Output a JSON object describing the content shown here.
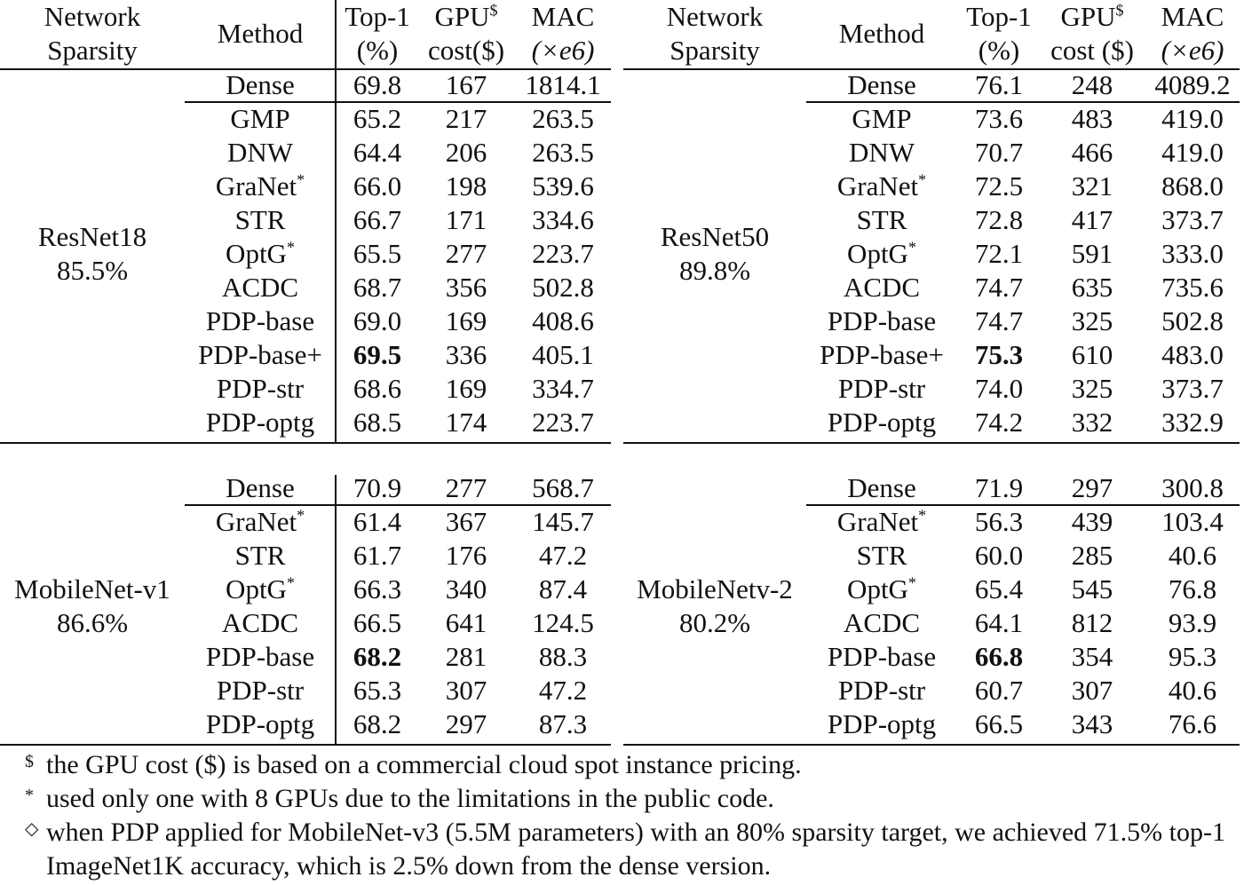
{
  "headers": {
    "network_sparsity": [
      "Network",
      "Sparsity"
    ],
    "method": "Method",
    "top1": [
      "Top-1",
      "(%)"
    ],
    "gpu_left": [
      "GPU",
      "cost($)"
    ],
    "gpu_right": [
      "GPU",
      "cost ($)"
    ],
    "gpu_sup": "$",
    "mac": [
      "MAC",
      "(×e6)"
    ]
  },
  "panels": [
    {
      "network": "ResNet18",
      "sparsity": "85.5%",
      "rows": [
        {
          "method": "Dense",
          "sup": "",
          "top1": "69.8",
          "gpu": "167",
          "mac": "1814.1",
          "bold": false
        },
        {
          "method": "GMP",
          "sup": "",
          "top1": "65.2",
          "gpu": "217",
          "mac": "263.5",
          "bold": false
        },
        {
          "method": "DNW",
          "sup": "",
          "top1": "64.4",
          "gpu": "206",
          "mac": "263.5",
          "bold": false
        },
        {
          "method": "GraNet",
          "sup": "*",
          "top1": "66.0",
          "gpu": "198",
          "mac": "539.6",
          "bold": false
        },
        {
          "method": "STR",
          "sup": "",
          "top1": "66.7",
          "gpu": "171",
          "mac": "334.6",
          "bold": false
        },
        {
          "method": "OptG",
          "sup": "*",
          "top1": "65.5",
          "gpu": "277",
          "mac": "223.7",
          "bold": false
        },
        {
          "method": "ACDC",
          "sup": "",
          "top1": "68.7",
          "gpu": "356",
          "mac": "502.8",
          "bold": false
        },
        {
          "method": "PDP-base",
          "sup": "",
          "top1": "69.0",
          "gpu": "169",
          "mac": "408.6",
          "bold": false
        },
        {
          "method": "PDP-base+",
          "sup": "",
          "top1": "69.5",
          "gpu": "336",
          "mac": "405.1",
          "bold": true
        },
        {
          "method": "PDP-str",
          "sup": "",
          "top1": "68.6",
          "gpu": "169",
          "mac": "334.7",
          "bold": false
        },
        {
          "method": "PDP-optg",
          "sup": "",
          "top1": "68.5",
          "gpu": "174",
          "mac": "223.7",
          "bold": false
        }
      ]
    },
    {
      "network": "ResNet50",
      "sparsity": "89.8%",
      "rows": [
        {
          "method": "Dense",
          "sup": "",
          "top1": "76.1",
          "gpu": "248",
          "mac": "4089.2",
          "bold": false
        },
        {
          "method": "GMP",
          "sup": "",
          "top1": "73.6",
          "gpu": "483",
          "mac": "419.0",
          "bold": false
        },
        {
          "method": "DNW",
          "sup": "",
          "top1": "70.7",
          "gpu": "466",
          "mac": "419.0",
          "bold": false
        },
        {
          "method": "GraNet",
          "sup": "*",
          "top1": "72.5",
          "gpu": "321",
          "mac": "868.0",
          "bold": false
        },
        {
          "method": "STR",
          "sup": "",
          "top1": "72.8",
          "gpu": "417",
          "mac": "373.7",
          "bold": false
        },
        {
          "method": "OptG",
          "sup": "*",
          "top1": "72.1",
          "gpu": "591",
          "mac": "333.0",
          "bold": false
        },
        {
          "method": "ACDC",
          "sup": "",
          "top1": "74.7",
          "gpu": "635",
          "mac": "735.6",
          "bold": false
        },
        {
          "method": "PDP-base",
          "sup": "",
          "top1": "74.7",
          "gpu": "325",
          "mac": "502.8",
          "bold": false
        },
        {
          "method": "PDP-base+",
          "sup": "",
          "top1": "75.3",
          "gpu": "610",
          "mac": "483.0",
          "bold": true
        },
        {
          "method": "PDP-str",
          "sup": "",
          "top1": "74.0",
          "gpu": "325",
          "mac": "373.7",
          "bold": false
        },
        {
          "method": "PDP-optg",
          "sup": "",
          "top1": "74.2",
          "gpu": "332",
          "mac": "332.9",
          "bold": false
        }
      ]
    },
    {
      "network": "MobileNet-v1",
      "sparsity": "86.6%",
      "rows": [
        {
          "method": "Dense",
          "sup": "",
          "top1": "70.9",
          "gpu": "277",
          "mac": "568.7",
          "bold": false
        },
        {
          "method": "GraNet",
          "sup": "*",
          "top1": "61.4",
          "gpu": "367",
          "mac": "145.7",
          "bold": false
        },
        {
          "method": "STR",
          "sup": "",
          "top1": "61.7",
          "gpu": "176",
          "mac": "47.2",
          "bold": false
        },
        {
          "method": "OptG",
          "sup": "*",
          "top1": "66.3",
          "gpu": "340",
          "mac": "87.4",
          "bold": false
        },
        {
          "method": "ACDC",
          "sup": "",
          "top1": "66.5",
          "gpu": "641",
          "mac": "124.5",
          "bold": false
        },
        {
          "method": "PDP-base",
          "sup": "",
          "top1": "68.2",
          "gpu": "281",
          "mac": "88.3",
          "bold": true
        },
        {
          "method": "PDP-str",
          "sup": "",
          "top1": "65.3",
          "gpu": "307",
          "mac": "47.2",
          "bold": false
        },
        {
          "method": "PDP-optg",
          "sup": "",
          "top1": "68.2",
          "gpu": "297",
          "mac": "87.3",
          "bold": false
        }
      ]
    },
    {
      "network": "MobileNetv-2",
      "sparsity": "80.2%",
      "rows": [
        {
          "method": "Dense",
          "sup": "",
          "top1": "71.9",
          "gpu": "297",
          "mac": "300.8",
          "bold": false
        },
        {
          "method": "GraNet",
          "sup": "*",
          "top1": "56.3",
          "gpu": "439",
          "mac": "103.4",
          "bold": false
        },
        {
          "method": "STR",
          "sup": "",
          "top1": "60.0",
          "gpu": "285",
          "mac": "40.6",
          "bold": false
        },
        {
          "method": "OptG",
          "sup": "*",
          "top1": "65.4",
          "gpu": "545",
          "mac": "76.8",
          "bold": false
        },
        {
          "method": "ACDC",
          "sup": "",
          "top1": "64.1",
          "gpu": "812",
          "mac": "93.9",
          "bold": false
        },
        {
          "method": "PDP-base",
          "sup": "",
          "top1": "66.8",
          "gpu": "354",
          "mac": "95.3",
          "bold": true
        },
        {
          "method": "PDP-str",
          "sup": "",
          "top1": "60.7",
          "gpu": "307",
          "mac": "40.6",
          "bold": false
        },
        {
          "method": "PDP-optg",
          "sup": "",
          "top1": "66.5",
          "gpu": "343",
          "mac": "76.6",
          "bold": false
        }
      ]
    }
  ],
  "footnotes": [
    {
      "symbol": "$",
      "text": "the GPU cost ($) is based on a commercial cloud spot instance pricing."
    },
    {
      "symbol": "*",
      "text": "used only one with 8 GPUs due to the limitations in the public code."
    },
    {
      "symbol": "◇",
      "text": "when PDP applied for MobileNet-v3 (5.5M parameters) with an 80% sparsity target, we achieved 71.5% top-1 ImageNet1K accuracy, which is 2.5% down from the dense version."
    }
  ]
}
